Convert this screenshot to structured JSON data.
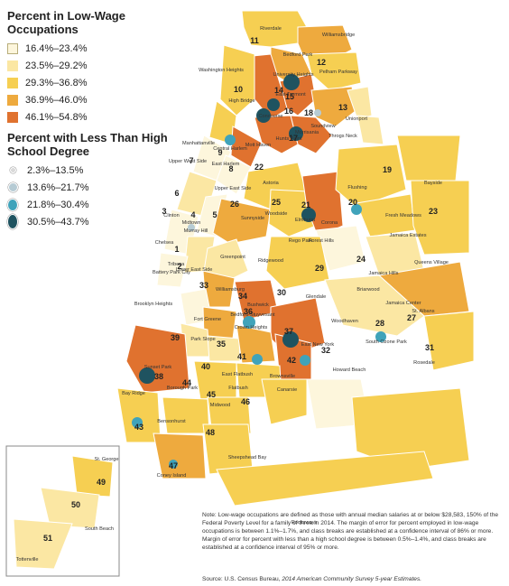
{
  "colors": {
    "c1": "#fdf6dc",
    "c2": "#fbe7a3",
    "c3": "#f6cf52",
    "c4": "#eeaa3e",
    "c5": "#e0722f",
    "water": "#ffffff",
    "dot_small": "#d9d9d9",
    "dot_mid": "#b6cbd4",
    "dot_teal": "#40a3ba",
    "dot_dark": "#1f5360"
  },
  "legend_low_wage": {
    "title": "Percent in Low-Wage Occupations",
    "classes": [
      {
        "label": "16.4%–23.4%",
        "color": "c1"
      },
      {
        "label": "23.5%–29.2%",
        "color": "c2"
      },
      {
        "label": "29.3%–36.8%",
        "color": "c3"
      },
      {
        "label": "36.9%–46.0%",
        "color": "c4"
      },
      {
        "label": "46.1%–54.8%",
        "color": "c5"
      }
    ]
  },
  "legend_hs": {
    "title": "Percent with Less Than High School Degree",
    "classes": [
      {
        "label": "2.3%–13.5%",
        "size": "small"
      },
      {
        "label": "13.6%–21.7%",
        "size": "mid"
      },
      {
        "label": "21.8%–30.4%",
        "size": "teal"
      },
      {
        "label": "30.5%–43.7%",
        "size": "dark"
      }
    ]
  },
  "district_numbers": [
    "1",
    "2",
    "3",
    "4",
    "5",
    "6",
    "7",
    "8",
    "9",
    "10",
    "11",
    "12",
    "13",
    "14",
    "15",
    "16",
    "17",
    "18",
    "19",
    "20",
    "21",
    "22",
    "23",
    "24",
    "25",
    "26",
    "27",
    "28",
    "29",
    "30",
    "31",
    "32",
    "33",
    "34",
    "35",
    "36",
    "37",
    "38",
    "39",
    "40",
    "41",
    "42",
    "43",
    "44",
    "45",
    "46",
    "47",
    "48",
    "49",
    "50",
    "51"
  ],
  "places": [
    "Riverdale",
    "Williamsbridge",
    "Bedford Park",
    "Pelham Parkway",
    "Washington Heights",
    "University Heights",
    "East Tremont",
    "High Bridge",
    "Concourse",
    "Morrisania",
    "Soundview",
    "Unionport",
    "Throgs Neck",
    "Manhattanville",
    "Central Harlem",
    "Mott Haven",
    "Hunts Point",
    "Upper West Side",
    "East Harlem",
    "Upper East Side",
    "Clinton",
    "Midtown",
    "Murray Hill",
    "Chelsea",
    "Battery Park City",
    "Tribeca",
    "Lower East Side",
    "Astoria",
    "Woodside",
    "Elmhurst",
    "Corona",
    "Flushing",
    "Bayside",
    "Fresh Meadows",
    "Jamaica Estates",
    "Queens Village",
    "Jamaica Hills",
    "Briarwood",
    "Jamaica Center",
    "St. Albans",
    "Sunnyside",
    "Greenpoint",
    "Rego Park",
    "Forest Hills",
    "Ridgewood",
    "Glendale",
    "Williamsburg",
    "Bushwick",
    "Bedford-Stuyvesant",
    "Brooklyn Heights",
    "Fort Greene",
    "Park Slope",
    "Crown Heights",
    "East New York",
    "Woodhaven",
    "South Ozone Park",
    "Howard Beach",
    "Rosedale",
    "Brownsville",
    "Sunset Park",
    "East Flatbush",
    "Flatbush",
    "Borough Park",
    "Bay Ridge",
    "Midwood",
    "Canarsie",
    "Bensonhurst",
    "Sheepshead Bay",
    "Coney Island",
    "Rockaways",
    "St. George",
    "South Beach",
    "Tottenville"
  ],
  "note": "Note: Low-wage occupations are defined as those with annual median salaries at or below $28,583, 150% of the Federal Poverty Level for a family of three in 2014. The margin of error for percent employed in low-wage occupations is between 1.1%–1.7%, and class breaks are established at a confidence interval of 86% or more. Margin of error for percent with less than a high school degree is between 0.5%–1.4%, and class breaks are established at a confidence interval of 95% or more.",
  "source_prefix": "Source: U.S. Census Bureau, ",
  "source_title": "2014 American Community Survey 5-year Estimates."
}
